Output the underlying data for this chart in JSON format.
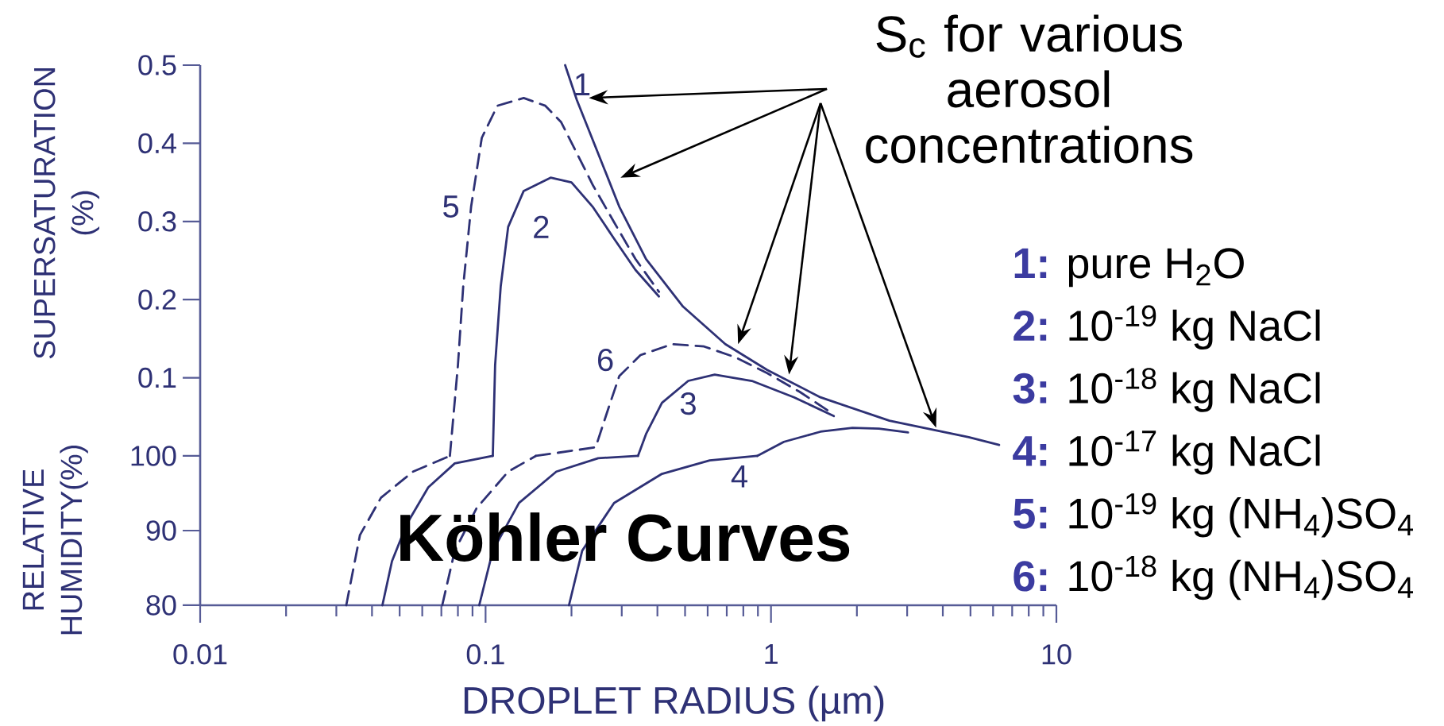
{
  "chart_data": [
    {
      "type": "line",
      "ylabel": "SUPERSATURATION (%)",
      "log": "x",
      "xlim": [
        0.01,
        10
      ],
      "ylim": [
        0,
        0.5
      ],
      "yticks": [
        0.1,
        0.2,
        0.3,
        0.4,
        0.5
      ],
      "tick_labels": "y",
      "annotations": [
        "S$_{c}$ for various aerosol concentrations",
        "**1:** pure H$_{2}$O",
        "**2:** 10$^{-19}$ kg NaCl",
        "**3:** 10$^{-18}$ kg NaCl",
        "**4:** 10$^{-17}$ kg NaCl",
        "**5:** 10$^{-19}$ kg (NH$_{4}$)SO$_{4}$",
        "**6:** 10$^{-18}$ kg (NH$_{4}$)SO$_{4}$"
      ],
      "series": [
        {
          "name": "1",
          "color": "#2e3175",
          "line_style": "solid",
          "x": [
            0.19,
            0.209,
            0.248,
            0.294,
            0.365,
            0.492,
            0.692,
            0.97,
            1.49,
            2.6,
            4.93,
            6.3
          ],
          "values": [
            0.5,
            0.455,
            0.387,
            0.319,
            0.252,
            0.191,
            0.143,
            0.11,
            0.075,
            0.045,
            0.024,
            0.014
          ]
        },
        {
          "name": "2",
          "color": "#2e3175",
          "line_style": "solid",
          "x": [
            0.106,
            0.108,
            0.113,
            0.12,
            0.136,
            0.169,
            0.2,
            0.237,
            0.282,
            0.335,
            0.405
          ],
          "values": [
            0,
            0.116,
            0.217,
            0.293,
            0.339,
            0.356,
            0.35,
            0.319,
            0.278,
            0.238,
            0.204
          ]
        },
        {
          "name": "3",
          "color": "#2e3175",
          "line_style": "solid",
          "x": [
            0.342,
            0.365,
            0.415,
            0.513,
            0.635,
            0.857,
            1.205,
            1.66
          ],
          "values": [
            0,
            0.028,
            0.068,
            0.096,
            0.104,
            0.096,
            0.075,
            0.051
          ]
        },
        {
          "color": "#2e3175",
          "line_style": "solid",
          "x": [
            0.895,
            1.11,
            1.49,
            1.93,
            2.39,
            3.02
          ],
          "values": [
            0,
            0.018,
            0.031,
            0.036,
            0.035,
            0.03
          ]
        },
        {
          "name": "5",
          "color": "#2e3175",
          "line_style": "dashed",
          "x": [
            0.075,
            0.08,
            0.0835,
            0.089,
            0.097,
            0.11,
            0.136,
            0.162,
            0.184,
            0.209,
            0.238,
            0.282,
            0.335,
            0.405
          ],
          "values": [
            0,
            0.116,
            0.217,
            0.319,
            0.407,
            0.448,
            0.458,
            0.448,
            0.427,
            0.387,
            0.346,
            0.299,
            0.252,
            0.21
          ]
        },
        {
          "name": "6",
          "color": "#2e3175",
          "line_style": "dashed",
          "x": [
            0.15,
            0.243,
            0.27,
            0.294,
            0.349,
            0.451,
            0.583,
            0.753,
            0.97,
            1.26,
            1.63
          ],
          "values": [
            0,
            0.011,
            0.062,
            0.102,
            0.129,
            0.143,
            0.14,
            0.126,
            0.106,
            0.082,
            0.055
          ]
        }
      ]
    },
    {
      "type": "line",
      "title": "Köhler Curves",
      "xlabel": "DROPLET RADIUS (µm)",
      "ylabel": "RELATIVE HUMIDITY(%)",
      "log": "x",
      "xlim": [
        0.01,
        10
      ],
      "xticks": [
        0.01,
        0.1,
        1,
        10
      ],
      "ylim": [
        80,
        100
      ],
      "yticks": [
        80,
        90,
        100
      ],
      "series": [
        {
          "color": "#2e3175",
          "line_style": "solid",
          "x": [
            0.0435,
            0.047,
            0.053,
            0.063,
            0.078,
            0.106
          ],
          "values": [
            80,
            85.9,
            90.9,
            95.8,
            99,
            100
          ]
        },
        {
          "color": "#2e3175",
          "line_style": "solid",
          "x": [
            0.095,
            0.106,
            0.131,
            0.177,
            0.248,
            0.342
          ],
          "values": [
            80,
            87.3,
            93.7,
            97.9,
            99.7,
            100
          ]
        },
        {
          "name": "4",
          "color": "#2e3175",
          "line_style": "solid",
          "x": [
            0.196,
            0.218,
            0.282,
            0.415,
            0.61,
            0.895
          ],
          "values": [
            80,
            87.3,
            93.7,
            97.6,
            99.4,
            100
          ]
        },
        {
          "color": "#2e3175",
          "line_style": "dashed",
          "x": [
            0.0325,
            0.0363,
            0.043,
            0.0557,
            0.075
          ],
          "values": [
            80,
            89.4,
            94.4,
            97.9,
            100
          ]
        },
        {
          "color": "#2e3175",
          "line_style": "dashed",
          "x": [
            0.0705,
            0.078,
            0.093,
            0.12,
            0.15
          ],
          "values": [
            80,
            87.3,
            93,
            97.9,
            100
          ]
        }
      ]
    }
  ]
}
